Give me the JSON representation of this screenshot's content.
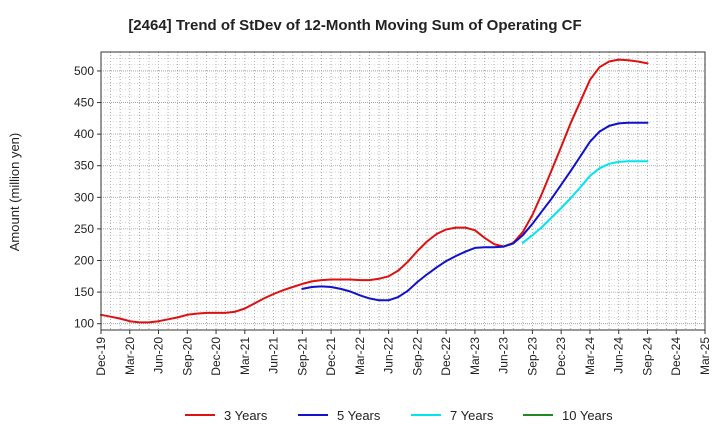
{
  "chart_data": {
    "type": "line",
    "title": "[2464]  Trend of StDev of 12-Month Moving Sum of Operating CF",
    "xlabel": "",
    "ylabel": "Amount (million yen)",
    "ylim": [
      90,
      530
    ],
    "yticks": [
      100,
      150,
      200,
      250,
      300,
      350,
      400,
      450,
      500
    ],
    "grid": true,
    "legend_position": "bottom",
    "x_tick_labels": [
      "Dec-19",
      "Mar-20",
      "Jun-20",
      "Sep-20",
      "Dec-20",
      "Mar-21",
      "Jun-21",
      "Sep-21",
      "Dec-21",
      "Mar-22",
      "Jun-22",
      "Sep-22",
      "Dec-22",
      "Mar-23",
      "Jun-23",
      "Sep-23",
      "Dec-23",
      "Mar-24",
      "Jun-24",
      "Sep-24",
      "Dec-24",
      "Mar-25"
    ],
    "series": [
      {
        "name": "3 Years",
        "color": "#dd1111",
        "points": [
          [
            "Dec-19",
            114
          ],
          [
            "Jan-20",
            111
          ],
          [
            "Feb-20",
            108
          ],
          [
            "Mar-20",
            104
          ],
          [
            "Apr-20",
            102
          ],
          [
            "May-20",
            102
          ],
          [
            "Jun-20",
            104
          ],
          [
            "Jul-20",
            107
          ],
          [
            "Aug-20",
            110
          ],
          [
            "Sep-20",
            114
          ],
          [
            "Oct-20",
            116
          ],
          [
            "Nov-20",
            117
          ],
          [
            "Dec-20",
            117
          ],
          [
            "Jan-21",
            117
          ],
          [
            "Feb-21",
            119
          ],
          [
            "Mar-21",
            124
          ],
          [
            "Apr-21",
            132
          ],
          [
            "May-21",
            140
          ],
          [
            "Jun-21",
            147
          ],
          [
            "Jul-21",
            153
          ],
          [
            "Aug-21",
            158
          ],
          [
            "Sep-21",
            163
          ],
          [
            "Oct-21",
            167
          ],
          [
            "Nov-21",
            169
          ],
          [
            "Dec-21",
            170
          ],
          [
            "Jan-22",
            170
          ],
          [
            "Feb-22",
            170
          ],
          [
            "Mar-22",
            169
          ],
          [
            "Apr-22",
            169
          ],
          [
            "May-22",
            171
          ],
          [
            "Jun-22",
            175
          ],
          [
            "Jul-22",
            184
          ],
          [
            "Aug-22",
            198
          ],
          [
            "Sep-22",
            215
          ],
          [
            "Oct-22",
            230
          ],
          [
            "Nov-22",
            242
          ],
          [
            "Dec-22",
            249
          ],
          [
            "Jan-23",
            252
          ],
          [
            "Feb-23",
            252
          ],
          [
            "Mar-23",
            248
          ],
          [
            "Apr-23",
            236
          ],
          [
            "May-23",
            226
          ],
          [
            "Jun-23",
            222
          ],
          [
            "Jul-23",
            228
          ],
          [
            "Aug-23",
            245
          ],
          [
            "Sep-23",
            272
          ],
          [
            "Oct-23",
            306
          ],
          [
            "Nov-23",
            343
          ],
          [
            "Dec-23",
            380
          ],
          [
            "Jan-24",
            418
          ],
          [
            "Feb-24",
            452
          ],
          [
            "Mar-24",
            486
          ],
          [
            "Apr-24",
            506
          ],
          [
            "May-24",
            515
          ],
          [
            "Jun-24",
            518
          ],
          [
            "Jul-24",
            517
          ],
          [
            "Aug-24",
            515
          ],
          [
            "Sep-24",
            512
          ]
        ]
      },
      {
        "name": "5 Years",
        "color": "#1111cc",
        "points": [
          [
            "Sep-21",
            155
          ],
          [
            "Oct-21",
            158
          ],
          [
            "Nov-21",
            159
          ],
          [
            "Dec-21",
            158
          ],
          [
            "Jan-22",
            155
          ],
          [
            "Feb-22",
            151
          ],
          [
            "Mar-22",
            145
          ],
          [
            "Apr-22",
            140
          ],
          [
            "May-22",
            137
          ],
          [
            "Jun-22",
            137
          ],
          [
            "Jul-22",
            142
          ],
          [
            "Aug-22",
            152
          ],
          [
            "Sep-22",
            166
          ],
          [
            "Oct-22",
            178
          ],
          [
            "Nov-22",
            189
          ],
          [
            "Dec-22",
            199
          ],
          [
            "Jan-23",
            207
          ],
          [
            "Feb-23",
            214
          ],
          [
            "Mar-23",
            220
          ],
          [
            "Apr-23",
            221
          ],
          [
            "May-23",
            221
          ],
          [
            "Jun-23",
            222
          ],
          [
            "Jul-23",
            227
          ],
          [
            "Aug-23",
            240
          ],
          [
            "Sep-23",
            258
          ],
          [
            "Oct-23",
            278
          ],
          [
            "Nov-23",
            298
          ],
          [
            "Dec-23",
            320
          ],
          [
            "Jan-24",
            342
          ],
          [
            "Feb-24",
            365
          ],
          [
            "Mar-24",
            388
          ],
          [
            "Apr-24",
            404
          ],
          [
            "May-24",
            413
          ],
          [
            "Jun-24",
            417
          ],
          [
            "Jul-24",
            418
          ],
          [
            "Aug-24",
            418
          ],
          [
            "Sep-24",
            418
          ]
        ]
      },
      {
        "name": "7 Years",
        "color": "#00e5ee",
        "points": [
          [
            "Aug-23",
            228
          ],
          [
            "Sep-23",
            240
          ],
          [
            "Oct-23",
            253
          ],
          [
            "Nov-23",
            268
          ],
          [
            "Dec-23",
            283
          ],
          [
            "Jan-24",
            299
          ],
          [
            "Feb-24",
            316
          ],
          [
            "Mar-24",
            334
          ],
          [
            "Apr-24",
            346
          ],
          [
            "May-24",
            353
          ],
          [
            "Jun-24",
            356
          ],
          [
            "Jul-24",
            357
          ],
          [
            "Aug-24",
            357
          ],
          [
            "Sep-24",
            357
          ]
        ]
      },
      {
        "name": "10 Years",
        "color": "#228822",
        "points": []
      }
    ]
  }
}
